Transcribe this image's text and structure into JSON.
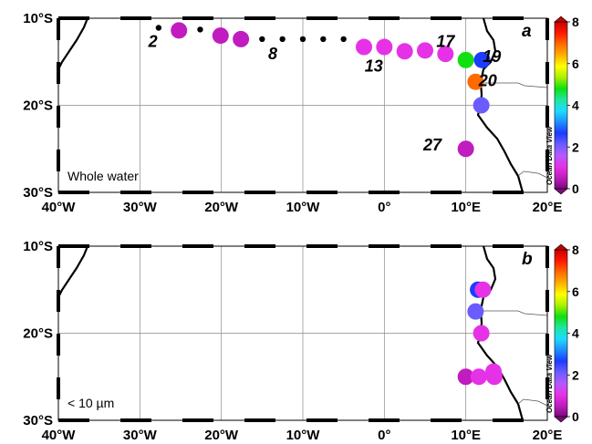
{
  "map_axes": {
    "lon_labels": [
      "40°W",
      "30°W",
      "20°W",
      "10°W",
      "0°",
      "10°E",
      "20°E"
    ],
    "lat_labels": [
      "10°S",
      "20°S",
      "30°S"
    ]
  },
  "colorbar": {
    "tick_labels": [
      "0",
      "2",
      "4",
      "6",
      "8"
    ],
    "vmin": 0,
    "vmax": 8,
    "title": "Ocean Data View",
    "palette": [
      "#7a0b7a",
      "#c01cc0",
      "#e632e6",
      "#b25aff",
      "#6a5cff",
      "#1c3cff",
      "#1e90ff",
      "#1edcff",
      "#1ee6a0",
      "#10e010",
      "#aaf000",
      "#ffff00",
      "#ffb000",
      "#ff6a00",
      "#ff1a00",
      "#c80000"
    ]
  },
  "panels": [
    {
      "id": "a",
      "panel_label": "a",
      "note": "Whole water",
      "stations": [
        {
          "lon": -25.2,
          "lat": -11.4,
          "value": 0.6
        },
        {
          "lon": -20.1,
          "lat": -12.0,
          "value": 0.3
        },
        {
          "lon": -17.6,
          "lat": -12.4,
          "value": 0.4
        },
        {
          "lon": -2.5,
          "lat": -13.3,
          "value": 0.8
        },
        {
          "lon": 0.0,
          "lat": -13.3,
          "value": 0.8
        },
        {
          "lon": 2.5,
          "lat": -13.8,
          "value": 0.8
        },
        {
          "lon": 5.0,
          "lat": -13.7,
          "value": 0.8
        },
        {
          "lon": 7.5,
          "lat": -14.1,
          "value": 0.8
        },
        {
          "lon": 10.0,
          "lat": -14.8,
          "value": 5.0
        },
        {
          "lon": 12.0,
          "lat": -14.8,
          "value": 2.6
        },
        {
          "lon": 11.2,
          "lat": -17.3,
          "value": 6.8
        },
        {
          "lon": 11.9,
          "lat": -20.0,
          "value": 2.3
        },
        {
          "lon": 10.0,
          "lat": -25.0,
          "value": 0.6
        }
      ],
      "no_data_stations": [
        {
          "lon": -27.7,
          "lat": -11.1
        },
        {
          "lon": -22.6,
          "lat": -11.3
        },
        {
          "lon": -15.0,
          "lat": -12.4
        },
        {
          "lon": -12.5,
          "lat": -12.4
        },
        {
          "lon": -10.0,
          "lat": -12.4
        },
        {
          "lon": -7.5,
          "lat": -12.4
        },
        {
          "lon": -5.0,
          "lat": -12.4
        }
      ],
      "station_labels": [
        {
          "text": "2",
          "lon": -28.4,
          "lat": -13.3
        },
        {
          "text": "8",
          "lon": -13.7,
          "lat": -14.7
        },
        {
          "text": "13",
          "lon": -1.3,
          "lat": -16.1
        },
        {
          "text": "17",
          "lon": 7.5,
          "lat": -13.3
        },
        {
          "text": "19",
          "lon": 13.2,
          "lat": -15.0
        },
        {
          "text": "20",
          "lon": 12.7,
          "lat": -17.8
        },
        {
          "text": "27",
          "lon": 5.9,
          "lat": -25.2
        }
      ]
    },
    {
      "id": "b",
      "panel_label": "b",
      "note": "< 10 µm",
      "stations": [
        {
          "lon": 11.5,
          "lat": -15.0,
          "value": 2.4
        },
        {
          "lon": 12.1,
          "lat": -15.0,
          "value": 0.9
        },
        {
          "lon": 11.2,
          "lat": -17.5,
          "value": 2.2
        },
        {
          "lon": 11.9,
          "lat": -20.0,
          "value": 0.8
        },
        {
          "lon": 10.0,
          "lat": -25.0,
          "value": 0.4
        },
        {
          "lon": 11.6,
          "lat": -25.0,
          "value": 0.8
        },
        {
          "lon": 13.4,
          "lat": -24.4,
          "value": 0.8
        },
        {
          "lon": 13.5,
          "lat": -25.0,
          "value": 0.8
        }
      ],
      "no_data_stations": [],
      "station_labels": []
    }
  ]
}
